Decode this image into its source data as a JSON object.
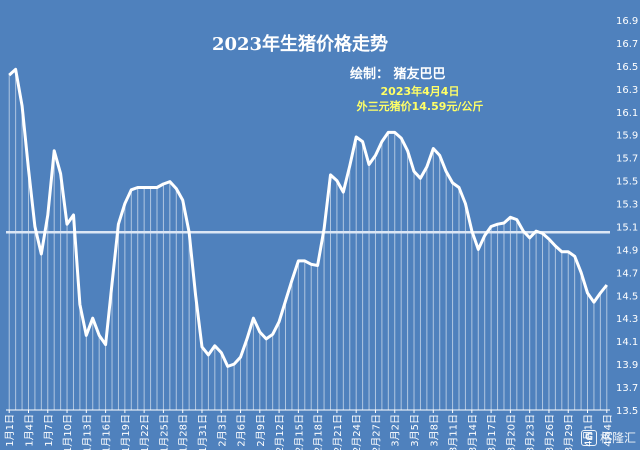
{
  "chart_data": {
    "type": "line",
    "title": "2023年生猪价格走势",
    "subtitle": "绘制： 猪友巴巴",
    "annotation": [
      "2023年4月4日",
      "外三元猪价14.59元/公斤"
    ],
    "ylim": [
      13.5,
      16.9
    ],
    "y_ticks": [
      "16.9",
      "16.7",
      "16.5",
      "16.3",
      "16.1",
      "15.9",
      "15.7",
      "15.5",
      "15.3",
      "15.1",
      "14.9",
      "14.7",
      "14.5",
      "14.3",
      "14.1",
      "13.9",
      "13.7",
      "13.5"
    ],
    "x_tick_labels": [
      "1月1日",
      "1月4日",
      "1月7日",
      "1月10日",
      "1月13日",
      "1月16日",
      "1月19日",
      "1月22日",
      "1月25日",
      "1月28日",
      "1月31日",
      "2月3日",
      "2月6日",
      "2月9日",
      "2月12日",
      "2月15日",
      "2月18日",
      "2月21日",
      "2月24日",
      "2月27日",
      "3月2日",
      "3月5日",
      "3月8日",
      "3月11日",
      "3月14日",
      "3月17日",
      "3月20日",
      "3月23日",
      "3月26日",
      "3月29日",
      "4月1日",
      "4月4日"
    ],
    "reference_line": 15.05,
    "values": [
      16.42,
      16.47,
      16.15,
      15.6,
      15.1,
      14.86,
      15.2,
      15.76,
      15.56,
      15.12,
      15.2,
      14.42,
      14.15,
      14.3,
      14.15,
      14.07,
      14.6,
      15.12,
      15.3,
      15.42,
      15.44,
      15.44,
      15.44,
      15.44,
      15.47,
      15.49,
      15.43,
      15.33,
      15.05,
      14.5,
      14.05,
      13.98,
      14.06,
      14.0,
      13.88,
      13.9,
      13.96,
      14.12,
      14.3,
      14.18,
      14.12,
      14.16,
      14.27,
      14.45,
      14.63,
      14.8,
      14.8,
      14.77,
      14.76,
      15.08,
      15.55,
      15.5,
      15.4,
      15.63,
      15.88,
      15.84,
      15.64,
      15.72,
      15.84,
      15.92,
      15.92,
      15.87,
      15.76,
      15.58,
      15.52,
      15.62,
      15.78,
      15.72,
      15.58,
      15.48,
      15.44,
      15.3,
      15.06,
      14.9,
      15.02,
      15.1,
      15.12,
      15.13,
      15.18,
      15.16,
      15.06,
      15.0,
      15.06,
      15.04,
      14.99,
      14.93,
      14.88,
      14.88,
      14.84,
      14.7,
      14.52,
      14.44,
      14.52,
      14.59
    ],
    "colors": {
      "background": "#4f81bd",
      "line": "#ffffff",
      "bars": "#ffffff",
      "note": "#ffff66"
    },
    "watermark": "格隆汇"
  }
}
